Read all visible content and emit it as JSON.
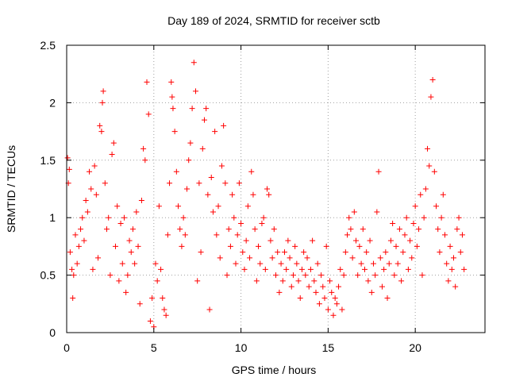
{
  "chart_data": {
    "type": "scatter",
    "title": "Day 189 of 2024, SRMTID for receiver sctb",
    "xlabel": "GPS time / hours",
    "ylabel": "SRMTID / TECUs",
    "xlim": [
      0,
      24
    ],
    "ylim": [
      0,
      2.5
    ],
    "x_ticks": [
      0,
      5,
      10,
      15,
      20
    ],
    "x_tick_labels": [
      "0",
      "5",
      "10",
      "15",
      "20"
    ],
    "y_ticks": [
      0,
      0.5,
      1,
      1.5,
      2,
      2.5
    ],
    "y_tick_labels": [
      "0",
      "0.5",
      "1",
      "1.5",
      "2",
      "2.5"
    ],
    "grid": true,
    "marker": "+",
    "marker_color": "#ff0000",
    "series": [
      {
        "name": "SRMTID",
        "points": [
          [
            0.05,
            1.52
          ],
          [
            0.1,
            1.3
          ],
          [
            0.15,
            1.42
          ],
          [
            0.2,
            0.7
          ],
          [
            0.3,
            0.55
          ],
          [
            0.35,
            0.3
          ],
          [
            0.4,
            0.5
          ],
          [
            0.5,
            0.85
          ],
          [
            0.6,
            0.6
          ],
          [
            0.7,
            0.75
          ],
          [
            0.8,
            0.9
          ],
          [
            0.9,
            1.0
          ],
          [
            1.0,
            0.8
          ],
          [
            1.1,
            1.15
          ],
          [
            1.2,
            1.05
          ],
          [
            1.3,
            1.4
          ],
          [
            1.4,
            1.25
          ],
          [
            1.5,
            0.55
          ],
          [
            1.6,
            1.45
          ],
          [
            1.7,
            1.2
          ],
          [
            1.8,
            0.65
          ],
          [
            1.9,
            1.8
          ],
          [
            2.0,
            1.75
          ],
          [
            2.05,
            2.0
          ],
          [
            2.1,
            2.1
          ],
          [
            2.2,
            1.3
          ],
          [
            2.3,
            0.9
          ],
          [
            2.4,
            1.0
          ],
          [
            2.5,
            0.5
          ],
          [
            2.6,
            1.55
          ],
          [
            2.7,
            1.65
          ],
          [
            2.8,
            0.75
          ],
          [
            2.9,
            1.1
          ],
          [
            3.0,
            0.45
          ],
          [
            3.1,
            0.95
          ],
          [
            3.2,
            0.6
          ],
          [
            3.3,
            1.0
          ],
          [
            3.4,
            0.35
          ],
          [
            3.5,
            0.5
          ],
          [
            3.6,
            0.8
          ],
          [
            3.7,
            0.7
          ],
          [
            3.8,
            0.9
          ],
          [
            3.9,
            0.6
          ],
          [
            4.0,
            1.05
          ],
          [
            4.1,
            0.75
          ],
          [
            4.2,
            0.25
          ],
          [
            4.3,
            1.15
          ],
          [
            4.4,
            1.6
          ],
          [
            4.5,
            1.5
          ],
          [
            4.6,
            2.18
          ],
          [
            4.7,
            1.9
          ],
          [
            4.8,
            0.1
          ],
          [
            4.9,
            0.3
          ],
          [
            5.0,
            0.05
          ],
          [
            5.1,
            0.6
          ],
          [
            5.2,
            0.45
          ],
          [
            5.3,
            1.1
          ],
          [
            5.4,
            0.55
          ],
          [
            5.5,
            0.3
          ],
          [
            5.6,
            0.2
          ],
          [
            5.7,
            0.15
          ],
          [
            5.8,
            0.85
          ],
          [
            5.9,
            1.3
          ],
          [
            6.0,
            2.18
          ],
          [
            6.05,
            2.05
          ],
          [
            6.1,
            1.95
          ],
          [
            6.2,
            1.75
          ],
          [
            6.3,
            1.4
          ],
          [
            6.4,
            1.1
          ],
          [
            6.5,
            0.9
          ],
          [
            6.6,
            0.75
          ],
          [
            6.7,
            1.0
          ],
          [
            6.8,
            0.85
          ],
          [
            6.9,
            1.25
          ],
          [
            7.0,
            1.5
          ],
          [
            7.1,
            1.65
          ],
          [
            7.2,
            1.95
          ],
          [
            7.3,
            2.35
          ],
          [
            7.4,
            2.1
          ],
          [
            7.5,
            0.45
          ],
          [
            7.6,
            1.3
          ],
          [
            7.7,
            0.7
          ],
          [
            7.8,
            1.6
          ],
          [
            7.9,
            1.85
          ],
          [
            8.0,
            1.95
          ],
          [
            8.1,
            1.2
          ],
          [
            8.2,
            0.2
          ],
          [
            8.3,
            1.35
          ],
          [
            8.4,
            1.05
          ],
          [
            8.5,
            1.75
          ],
          [
            8.6,
            0.85
          ],
          [
            8.7,
            1.1
          ],
          [
            8.8,
            0.65
          ],
          [
            8.9,
            1.45
          ],
          [
            9.0,
            1.8
          ],
          [
            9.1,
            1.3
          ],
          [
            9.2,
            0.5
          ],
          [
            9.3,
            0.9
          ],
          [
            9.4,
            0.75
          ],
          [
            9.5,
            1.2
          ],
          [
            9.6,
            1.0
          ],
          [
            9.7,
            0.6
          ],
          [
            9.8,
            0.85
          ],
          [
            9.9,
            1.3
          ],
          [
            10.0,
            0.95
          ],
          [
            10.1,
            0.7
          ],
          [
            10.2,
            0.55
          ],
          [
            10.3,
            0.8
          ],
          [
            10.4,
            1.1
          ],
          [
            10.5,
            0.65
          ],
          [
            10.6,
            1.4
          ],
          [
            10.7,
            1.2
          ],
          [
            10.8,
            0.9
          ],
          [
            10.9,
            0.45
          ],
          [
            11.0,
            0.75
          ],
          [
            11.1,
            0.6
          ],
          [
            11.2,
            0.95
          ],
          [
            11.3,
            1.0
          ],
          [
            11.4,
            0.55
          ],
          [
            11.5,
            1.25
          ],
          [
            11.6,
            1.2
          ],
          [
            11.7,
            0.8
          ],
          [
            11.8,
            0.65
          ],
          [
            11.9,
            0.9
          ],
          [
            12.0,
            0.5
          ],
          [
            12.1,
            0.7
          ],
          [
            12.2,
            0.35
          ],
          [
            12.3,
            0.6
          ],
          [
            12.4,
            0.45
          ],
          [
            12.5,
            0.7
          ],
          [
            12.6,
            0.55
          ],
          [
            12.7,
            0.8
          ],
          [
            12.8,
            0.65
          ],
          [
            12.9,
            0.4
          ],
          [
            13.0,
            0.5
          ],
          [
            13.1,
            0.75
          ],
          [
            13.2,
            0.6
          ],
          [
            13.3,
            0.45
          ],
          [
            13.4,
            0.3
          ],
          [
            13.5,
            0.55
          ],
          [
            13.6,
            0.7
          ],
          [
            13.7,
            0.5
          ],
          [
            13.8,
            0.65
          ],
          [
            13.9,
            0.4
          ],
          [
            14.0,
            0.55
          ],
          [
            14.1,
            0.8
          ],
          [
            14.2,
            0.45
          ],
          [
            14.3,
            0.35
          ],
          [
            14.4,
            0.6
          ],
          [
            14.5,
            0.25
          ],
          [
            14.6,
            0.5
          ],
          [
            14.7,
            0.4
          ],
          [
            14.8,
            0.3
          ],
          [
            14.9,
            0.75
          ],
          [
            15.0,
            0.2
          ],
          [
            15.1,
            0.45
          ],
          [
            15.2,
            0.35
          ],
          [
            15.3,
            0.15
          ],
          [
            15.4,
            0.3
          ],
          [
            15.5,
            0.25
          ],
          [
            15.6,
            0.4
          ],
          [
            15.7,
            0.55
          ],
          [
            15.8,
            0.2
          ],
          [
            15.9,
            0.5
          ],
          [
            16.0,
            0.7
          ],
          [
            16.1,
            0.85
          ],
          [
            16.2,
            1.0
          ],
          [
            16.3,
            0.9
          ],
          [
            16.4,
            0.65
          ],
          [
            16.5,
            1.05
          ],
          [
            16.6,
            0.8
          ],
          [
            16.7,
            0.5
          ],
          [
            16.8,
            0.75
          ],
          [
            16.9,
            0.6
          ],
          [
            17.0,
            0.9
          ],
          [
            17.1,
            0.55
          ],
          [
            17.2,
            0.7
          ],
          [
            17.3,
            0.45
          ],
          [
            17.4,
            0.8
          ],
          [
            17.5,
            0.35
          ],
          [
            17.6,
            0.6
          ],
          [
            17.7,
            0.5
          ],
          [
            17.8,
            1.05
          ],
          [
            17.9,
            1.4
          ],
          [
            18.0,
            0.65
          ],
          [
            18.1,
            0.4
          ],
          [
            18.2,
            0.55
          ],
          [
            18.3,
            0.7
          ],
          [
            18.4,
            0.3
          ],
          [
            18.5,
            0.6
          ],
          [
            18.6,
            0.8
          ],
          [
            18.7,
            0.95
          ],
          [
            18.8,
            0.5
          ],
          [
            18.9,
            0.75
          ],
          [
            19.0,
            0.6
          ],
          [
            19.1,
            0.9
          ],
          [
            19.2,
            0.45
          ],
          [
            19.3,
            0.7
          ],
          [
            19.4,
            0.85
          ],
          [
            19.5,
            1.0
          ],
          [
            19.6,
            0.55
          ],
          [
            19.7,
            0.8
          ],
          [
            19.8,
            0.65
          ],
          [
            19.9,
            0.95
          ],
          [
            20.0,
            1.1
          ],
          [
            20.1,
            0.75
          ],
          [
            20.2,
            0.9
          ],
          [
            20.3,
            1.2
          ],
          [
            20.4,
            0.5
          ],
          [
            20.5,
            1.0
          ],
          [
            20.6,
            1.25
          ],
          [
            20.7,
            1.6
          ],
          [
            20.8,
            1.45
          ],
          [
            20.9,
            2.05
          ],
          [
            21.0,
            2.2
          ],
          [
            21.1,
            1.4
          ],
          [
            21.2,
            1.1
          ],
          [
            21.3,
            0.9
          ],
          [
            21.4,
            0.7
          ],
          [
            21.5,
            1.0
          ],
          [
            21.6,
            1.2
          ],
          [
            21.7,
            0.85
          ],
          [
            21.8,
            0.6
          ],
          [
            21.9,
            0.45
          ],
          [
            22.0,
            0.75
          ],
          [
            22.1,
            0.55
          ],
          [
            22.2,
            0.65
          ],
          [
            22.3,
            0.4
          ],
          [
            22.4,
            0.9
          ],
          [
            22.5,
            1.0
          ],
          [
            22.6,
            0.7
          ],
          [
            22.7,
            0.85
          ],
          [
            22.8,
            0.55
          ]
        ]
      }
    ]
  }
}
